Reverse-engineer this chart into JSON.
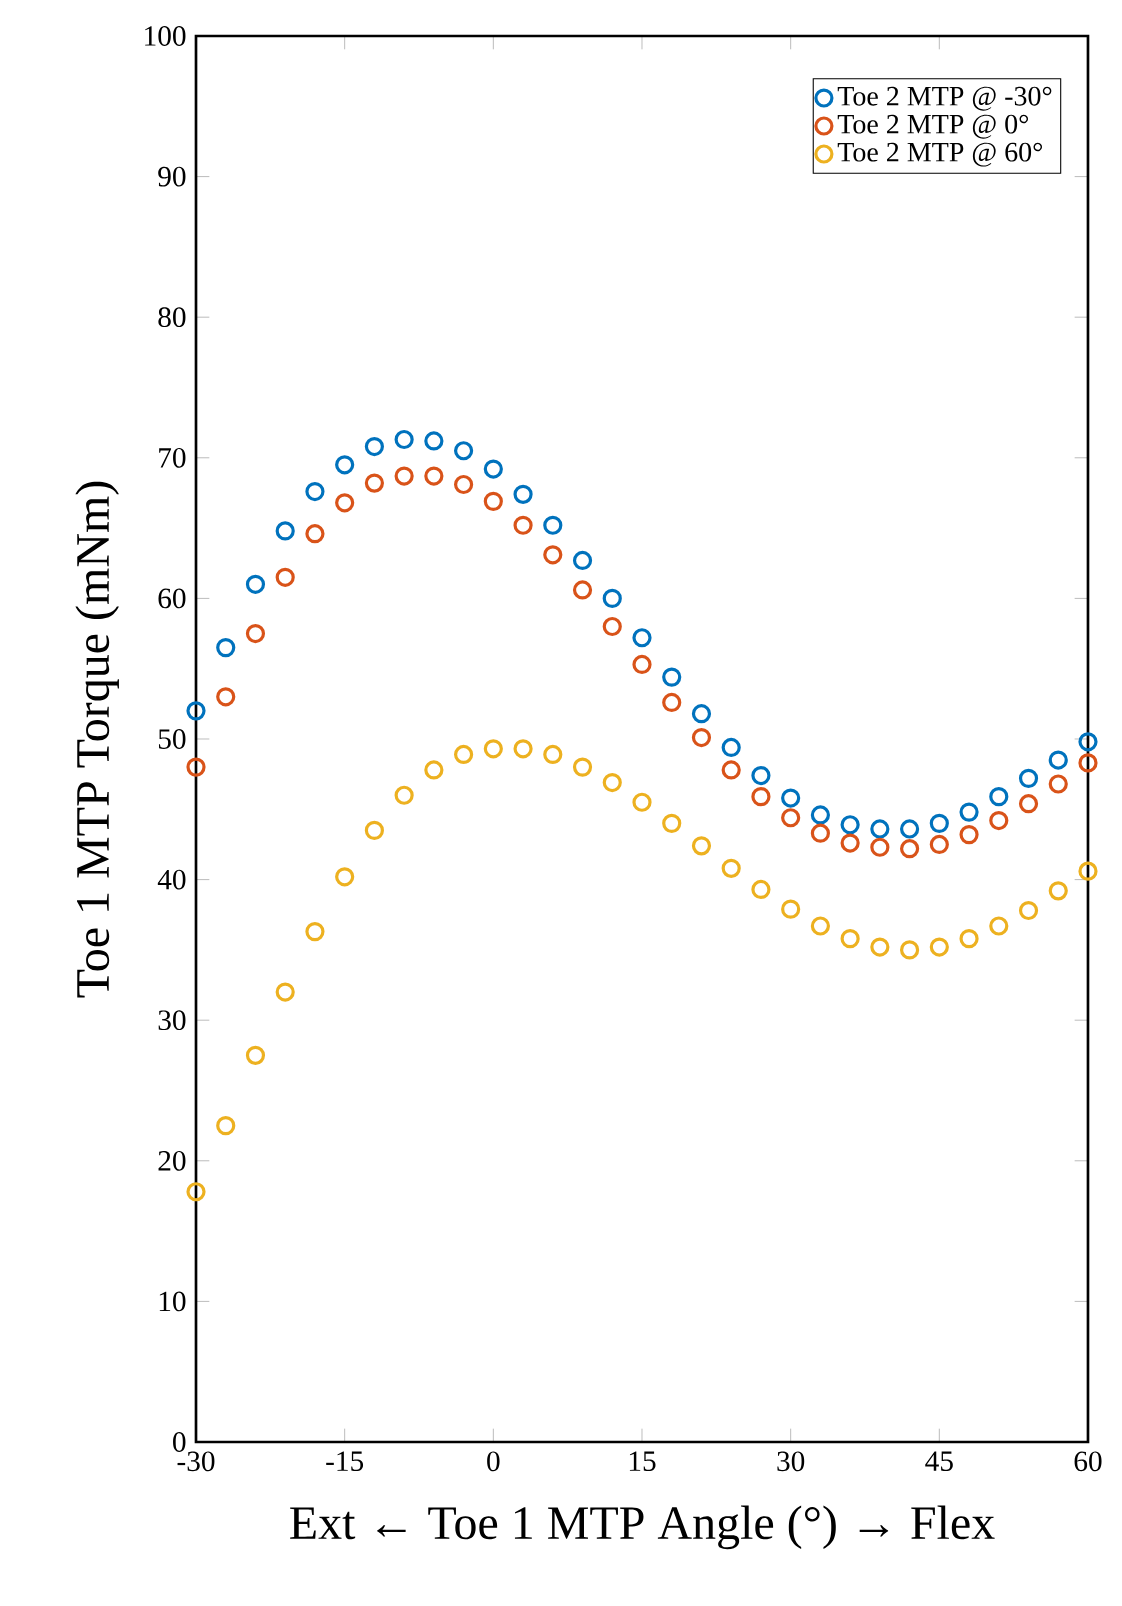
{
  "chart_data": {
    "type": "scatter",
    "xlabel": "Ext ← Toe 1 MTP Angle (°) → Flex",
    "ylabel": "Toe 1 MTP Torque (mNm)",
    "x": [
      -30,
      -27,
      -24,
      -21,
      -18,
      -15,
      -12,
      -9,
      -6,
      -3,
      0,
      3,
      6,
      9,
      12,
      15,
      18,
      21,
      24,
      27,
      30,
      33,
      36,
      39,
      42,
      45,
      48,
      51,
      54,
      57,
      60
    ],
    "series": [
      {
        "name": "Toe 2 MTP @ -30°",
        "color": "#0072bd",
        "values": [
          52,
          56.5,
          61,
          64.8,
          67.6,
          69.5,
          70.8,
          71.3,
          71.2,
          70.5,
          69.2,
          67.4,
          65.2,
          62.7,
          60,
          57.2,
          54.4,
          51.8,
          49.4,
          47.4,
          45.8,
          44.6,
          43.9,
          43.6,
          43.6,
          44,
          44.8,
          45.9,
          47.2,
          48.5,
          49.8
        ]
      },
      {
        "name": "Toe 2 MTP @ 0°",
        "color": "#d95319",
        "values": [
          48,
          53,
          57.5,
          61.5,
          64.6,
          66.8,
          68.2,
          68.7,
          68.7,
          68.1,
          66.9,
          65.2,
          63.1,
          60.6,
          58,
          55.3,
          52.6,
          50.1,
          47.8,
          45.9,
          44.4,
          43.3,
          42.6,
          42.3,
          42.2,
          42.5,
          43.2,
          44.2,
          45.4,
          46.8,
          48.3
        ]
      },
      {
        "name": "Toe 2 MTP @ 60°",
        "color": "#edb120",
        "values": [
          17.8,
          22.5,
          27.5,
          32,
          36.3,
          40.2,
          43.5,
          46,
          47.8,
          48.9,
          49.3,
          49.3,
          48.9,
          48,
          46.9,
          45.5,
          44,
          42.4,
          40.8,
          39.3,
          37.9,
          36.7,
          35.8,
          35.2,
          35,
          35.2,
          35.8,
          36.7,
          37.8,
          39.2,
          40.6
        ]
      }
    ],
    "xlim": [
      -30,
      60
    ],
    "xticks": [
      -30,
      -15,
      0,
      15,
      30,
      45,
      60
    ],
    "ylim": [
      0,
      100
    ],
    "yticks": [
      0,
      10,
      20,
      30,
      40,
      50,
      60,
      70,
      80,
      90,
      100
    ],
    "marker": "circle",
    "legend": "top right"
  }
}
